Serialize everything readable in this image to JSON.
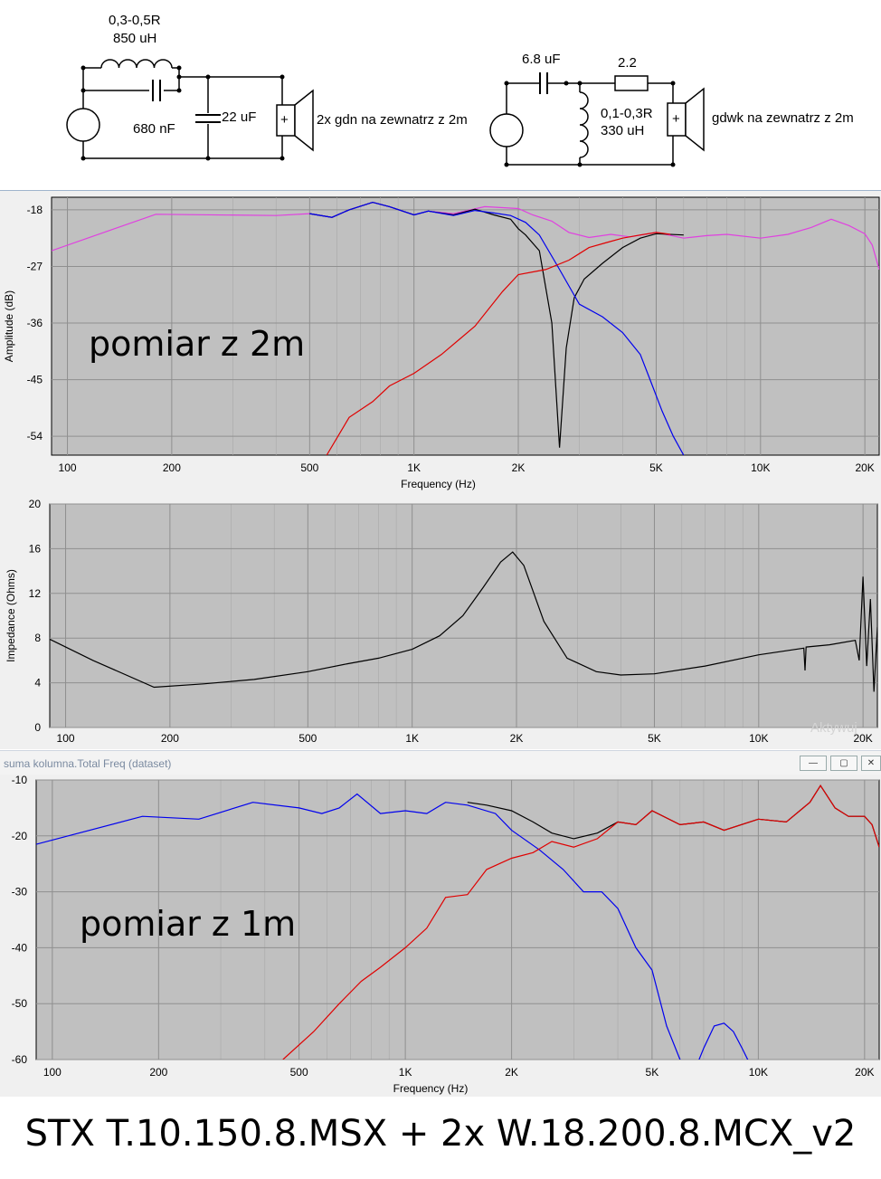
{
  "schematic": {
    "left": {
      "inductor_label": "0,3-0,5R",
      "inductor_value": "850 uH",
      "cap_parallel": "680 nF",
      "cap_shunt": "22 uF",
      "speaker_label": "2x gdn na zewnatrz z 2m"
    },
    "right": {
      "cap_series": "6.8 uF",
      "resistor": "2.2",
      "inductor_label": "0,1-0,3R",
      "inductor_value": "330 uH",
      "speaker_label": "gdwk na zewnatrz z 2m"
    },
    "plus_sign": "+"
  },
  "window": {
    "title": "suma kolumna.Total Freq (dataset)",
    "btn_min": "—",
    "btn_max": "▢",
    "btn_close": "✕"
  },
  "watermark": "Aktywuj",
  "caption": "STX T.10.150.8.MSX + 2x W.18.200.8.MCX_v2",
  "colors": {
    "plot_bg": "#c0c0c0",
    "grid": "#8f8f8f",
    "black": "#000000",
    "blue": "#0000ee",
    "red": "#e00000",
    "magenta": "#e040e0"
  },
  "chart_data": [
    {
      "type": "line",
      "annotation": "pomiar z 2m",
      "xlabel": "Frequency (Hz)",
      "ylabel": "Amplitude (dB)",
      "xscale": "log",
      "xlim": [
        90,
        22000
      ],
      "ylim": [
        -57,
        -16
      ],
      "x_ticks": [
        100,
        200,
        500,
        1000,
        2000,
        5000,
        10000,
        20000
      ],
      "x_tick_labels": [
        "100",
        "200",
        "500",
        "1K",
        "2K",
        "5K",
        "10K",
        "20K"
      ],
      "y_ticks": [
        -18,
        -27,
        -36,
        -45,
        -54
      ],
      "y_tick_labels": [
        "-18",
        "-27",
        "-36",
        "-45",
        "-54"
      ],
      "grid": true,
      "series": [
        {
          "color": "magenta",
          "x": [
            90,
            180,
            400,
            500,
            580,
            650,
            760,
            850,
            1000,
            1100,
            1300,
            1600,
            2000,
            2200,
            2500,
            2800,
            3200,
            3700,
            4200,
            5000,
            6000,
            7000,
            8000,
            10000,
            12000,
            14000,
            16000,
            18000,
            20000,
            21000,
            22000
          ],
          "y": [
            -24.5,
            -18.7,
            -18.9,
            -18.6,
            -19.2,
            -18.0,
            -16.8,
            -17.5,
            -18.8,
            -18.2,
            -18.6,
            -17.5,
            -17.8,
            -18.8,
            -19.8,
            -21.6,
            -22.4,
            -21.9,
            -22.3,
            -21.6,
            -22.5,
            -22.1,
            -21.9,
            -22.5,
            -21.9,
            -20.8,
            -19.5,
            -20.5,
            -21.8,
            -23.6,
            -27.5
          ]
        },
        {
          "color": "black",
          "x": [
            500,
            580,
            650,
            760,
            850,
            1000,
            1100,
            1300,
            1500,
            1700,
            1900,
            2000,
            2100,
            2300,
            2500,
            2630,
            2750,
            2900,
            3100,
            3500,
            4000,
            4500,
            5000,
            6000
          ],
          "y": [
            -18.6,
            -19.2,
            -18.0,
            -16.8,
            -17.5,
            -18.8,
            -18.2,
            -18.8,
            -17.9,
            -18.8,
            -19.5,
            -21.0,
            -22.0,
            -24.5,
            -36.0,
            -55.8,
            -40.0,
            -32.0,
            -29.0,
            -26.5,
            -24.0,
            -22.5,
            -21.8,
            -22.0
          ]
        },
        {
          "color": "blue",
          "x": [
            500,
            580,
            650,
            760,
            850,
            1000,
            1100,
            1300,
            1500,
            1700,
            1900,
            2100,
            2300,
            2600,
            3000,
            3500,
            4000,
            4500,
            4800,
            5200,
            5600,
            6000
          ],
          "y": [
            -18.6,
            -19.2,
            -18.0,
            -16.8,
            -17.5,
            -18.8,
            -18.2,
            -18.9,
            -18.1,
            -18.5,
            -18.9,
            -20.0,
            -22.0,
            -27.0,
            -33.0,
            -35.0,
            -37.5,
            -41.0,
            -45.0,
            -50.0,
            -54.0,
            -57.0
          ]
        },
        {
          "color": "red",
          "x": [
            560,
            650,
            760,
            850,
            1000,
            1200,
            1500,
            1800,
            2000,
            2400,
            2800,
            3200,
            3600,
            4000,
            4500,
            5000,
            5500
          ],
          "y": [
            -57.0,
            -51.0,
            -48.5,
            -46.0,
            -44.0,
            -41.0,
            -36.5,
            -31.0,
            -28.3,
            -27.5,
            -26.0,
            -24.0,
            -23.2,
            -22.5,
            -22.0,
            -21.6,
            -21.9
          ]
        }
      ]
    },
    {
      "type": "line",
      "xlabel": "",
      "ylabel": "Impedance (Ohms)",
      "xscale": "log",
      "xlim": [
        90,
        22000
      ],
      "ylim": [
        0,
        20
      ],
      "x_ticks": [
        100,
        200,
        500,
        1000,
        2000,
        5000,
        10000,
        20000
      ],
      "x_tick_labels": [
        "100",
        "200",
        "500",
        "1K",
        "2K",
        "5K",
        "10K",
        "20K"
      ],
      "y_ticks": [
        0,
        4,
        8,
        12,
        16,
        20
      ],
      "y_tick_labels": [
        "0",
        "4",
        "8",
        "12",
        "16",
        "20"
      ],
      "grid": true,
      "series": [
        {
          "color": "black",
          "x": [
            90,
            120,
            180,
            250,
            350,
            500,
            650,
            800,
            1000,
            1200,
            1400,
            1600,
            1800,
            1950,
            2100,
            2400,
            2800,
            3400,
            4000,
            5000,
            7000,
            10000,
            13500,
            13600,
            13700,
            16000,
            19000,
            19500,
            20000,
            20500,
            21000,
            21500,
            22000
          ],
          "y": [
            7.9,
            6.0,
            3.6,
            3.9,
            4.3,
            5.0,
            5.7,
            6.2,
            7.0,
            8.2,
            10.0,
            12.5,
            14.8,
            15.7,
            14.5,
            9.5,
            6.2,
            5.0,
            4.7,
            4.8,
            5.5,
            6.5,
            7.1,
            5.1,
            7.2,
            7.4,
            7.8,
            6.0,
            13.5,
            5.5,
            11.5,
            3.2,
            9.0
          ]
        }
      ]
    },
    {
      "type": "line",
      "annotation": "pomiar z 1m",
      "xlabel": "Frequency (Hz)",
      "ylabel": "",
      "xscale": "log",
      "xlim": [
        90,
        22000
      ],
      "ylim": [
        -60,
        -10
      ],
      "x_ticks": [
        100,
        200,
        500,
        1000,
        2000,
        5000,
        10000,
        20000
      ],
      "x_tick_labels": [
        "100",
        "200",
        "500",
        "1K",
        "2K",
        "5K",
        "10K",
        "20K"
      ],
      "y_ticks": [
        -10,
        -20,
        -30,
        -40,
        -50,
        -60
      ],
      "y_tick_labels": [
        "-10",
        "-20",
        "-30",
        "-40",
        "-50",
        "-60"
      ],
      "grid": true,
      "series": [
        {
          "color": "black",
          "x": [
            1500,
            1700,
            2000,
            2300,
            2600,
            3000,
            3500,
            4000,
            4500,
            5000,
            6000,
            7000,
            8000,
            10000,
            12000,
            14000,
            15000,
            16500,
            18000,
            20000,
            21000,
            22000
          ],
          "y": [
            -14.0,
            -14.5,
            -15.5,
            -17.5,
            -19.5,
            -20.5,
            -19.5,
            -17.5,
            -18.0,
            -15.5,
            -18.0,
            -17.5,
            -19.0,
            -17.0,
            -17.5,
            -14.0,
            -11.0,
            -15.0,
            -16.5,
            -16.5,
            -18.0,
            -22.0
          ]
        },
        {
          "color": "blue",
          "x": [
            90,
            180,
            260,
            370,
            500,
            580,
            650,
            730,
            850,
            1000,
            1150,
            1300,
            1500,
            1800,
            2000,
            2400,
            2800,
            3200,
            3600,
            4000,
            4500,
            5000,
            5500,
            6000,
            6500,
            7000,
            7500,
            8000,
            8500,
            9000,
            9500
          ],
          "y": [
            -21.5,
            -16.5,
            -17.0,
            -14.0,
            -15.0,
            -16.0,
            -15.0,
            -12.5,
            -16.0,
            -15.5,
            -16.0,
            -14.0,
            -14.5,
            -16.0,
            -19.0,
            -22.5,
            -26.0,
            -30.0,
            -30.0,
            -33.0,
            -40.0,
            -44.0,
            -54.0,
            -60.0,
            -63.0,
            -58.0,
            -54.0,
            -53.5,
            -55.0,
            -58.0,
            -61.0
          ]
        },
        {
          "color": "red",
          "x": [
            450,
            550,
            650,
            750,
            850,
            1000,
            1150,
            1300,
            1500,
            1700,
            2000,
            2300,
            2600,
            3000,
            3500,
            4000,
            4500,
            5000,
            6000,
            7000,
            8000,
            10000,
            12000,
            14000,
            15000,
            16500,
            18000,
            20000,
            21000,
            22000
          ],
          "y": [
            -60.0,
            -55.0,
            -50.0,
            -46.0,
            -43.5,
            -40.0,
            -36.5,
            -31.0,
            -30.5,
            -26.0,
            -24.0,
            -23.0,
            -21.0,
            -22.0,
            -20.5,
            -17.5,
            -18.0,
            -15.5,
            -18.0,
            -17.5,
            -19.0,
            -17.0,
            -17.5,
            -14.0,
            -11.0,
            -15.0,
            -16.5,
            -16.5,
            -18.0,
            -22.0
          ]
        }
      ]
    }
  ]
}
